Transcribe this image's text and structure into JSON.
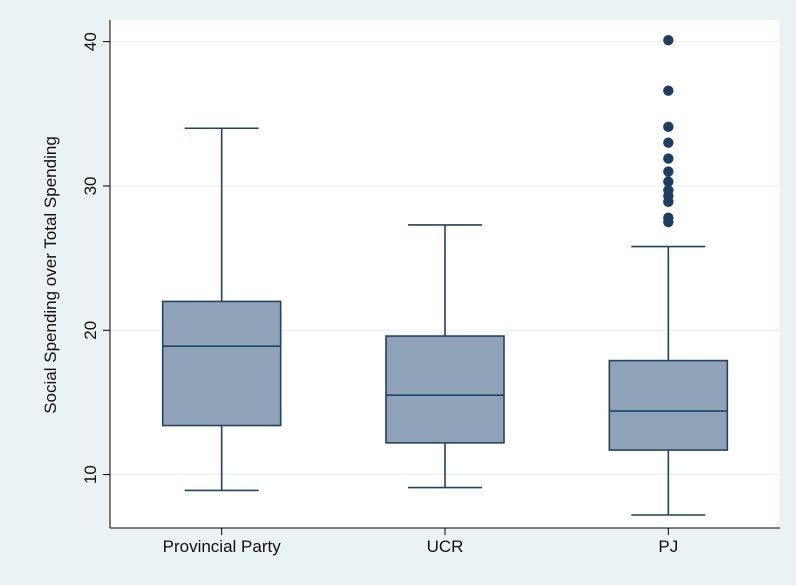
{
  "chart_data": {
    "type": "box",
    "title": "",
    "xlabel": "",
    "ylabel": "Social Spending over Total Spending",
    "ylim": [
      6.3,
      41.5
    ],
    "yticks": [
      10,
      20,
      30,
      40
    ],
    "grid": true,
    "legend": "none",
    "colors": {
      "box_fill": "#8fa3b8",
      "stroke": "#1f4465",
      "outlier": "#1a3f63",
      "plot_bg": "#ffffff",
      "page_bg": "#eaf2f3",
      "grid": "#e6eef0"
    },
    "categories": [
      "Provincial Party",
      "UCR",
      "PJ"
    ],
    "boxes": [
      {
        "category": "Provincial Party",
        "whisker_low": 8.9,
        "q1": 13.4,
        "median": 18.9,
        "q3": 22.0,
        "whisker_high": 34.0,
        "outliers": []
      },
      {
        "category": "UCR",
        "whisker_low": 9.1,
        "q1": 12.2,
        "median": 15.5,
        "q3": 19.6,
        "whisker_high": 27.3,
        "outliers": []
      },
      {
        "category": "PJ",
        "whisker_low": 7.2,
        "q1": 11.7,
        "median": 14.4,
        "q3": 17.9,
        "whisker_high": 25.8,
        "outliers": [
          27.5,
          27.8,
          28.9,
          29.3,
          29.7,
          30.3,
          31.0,
          31.9,
          33.0,
          34.1,
          36.6,
          40.1
        ]
      }
    ]
  }
}
